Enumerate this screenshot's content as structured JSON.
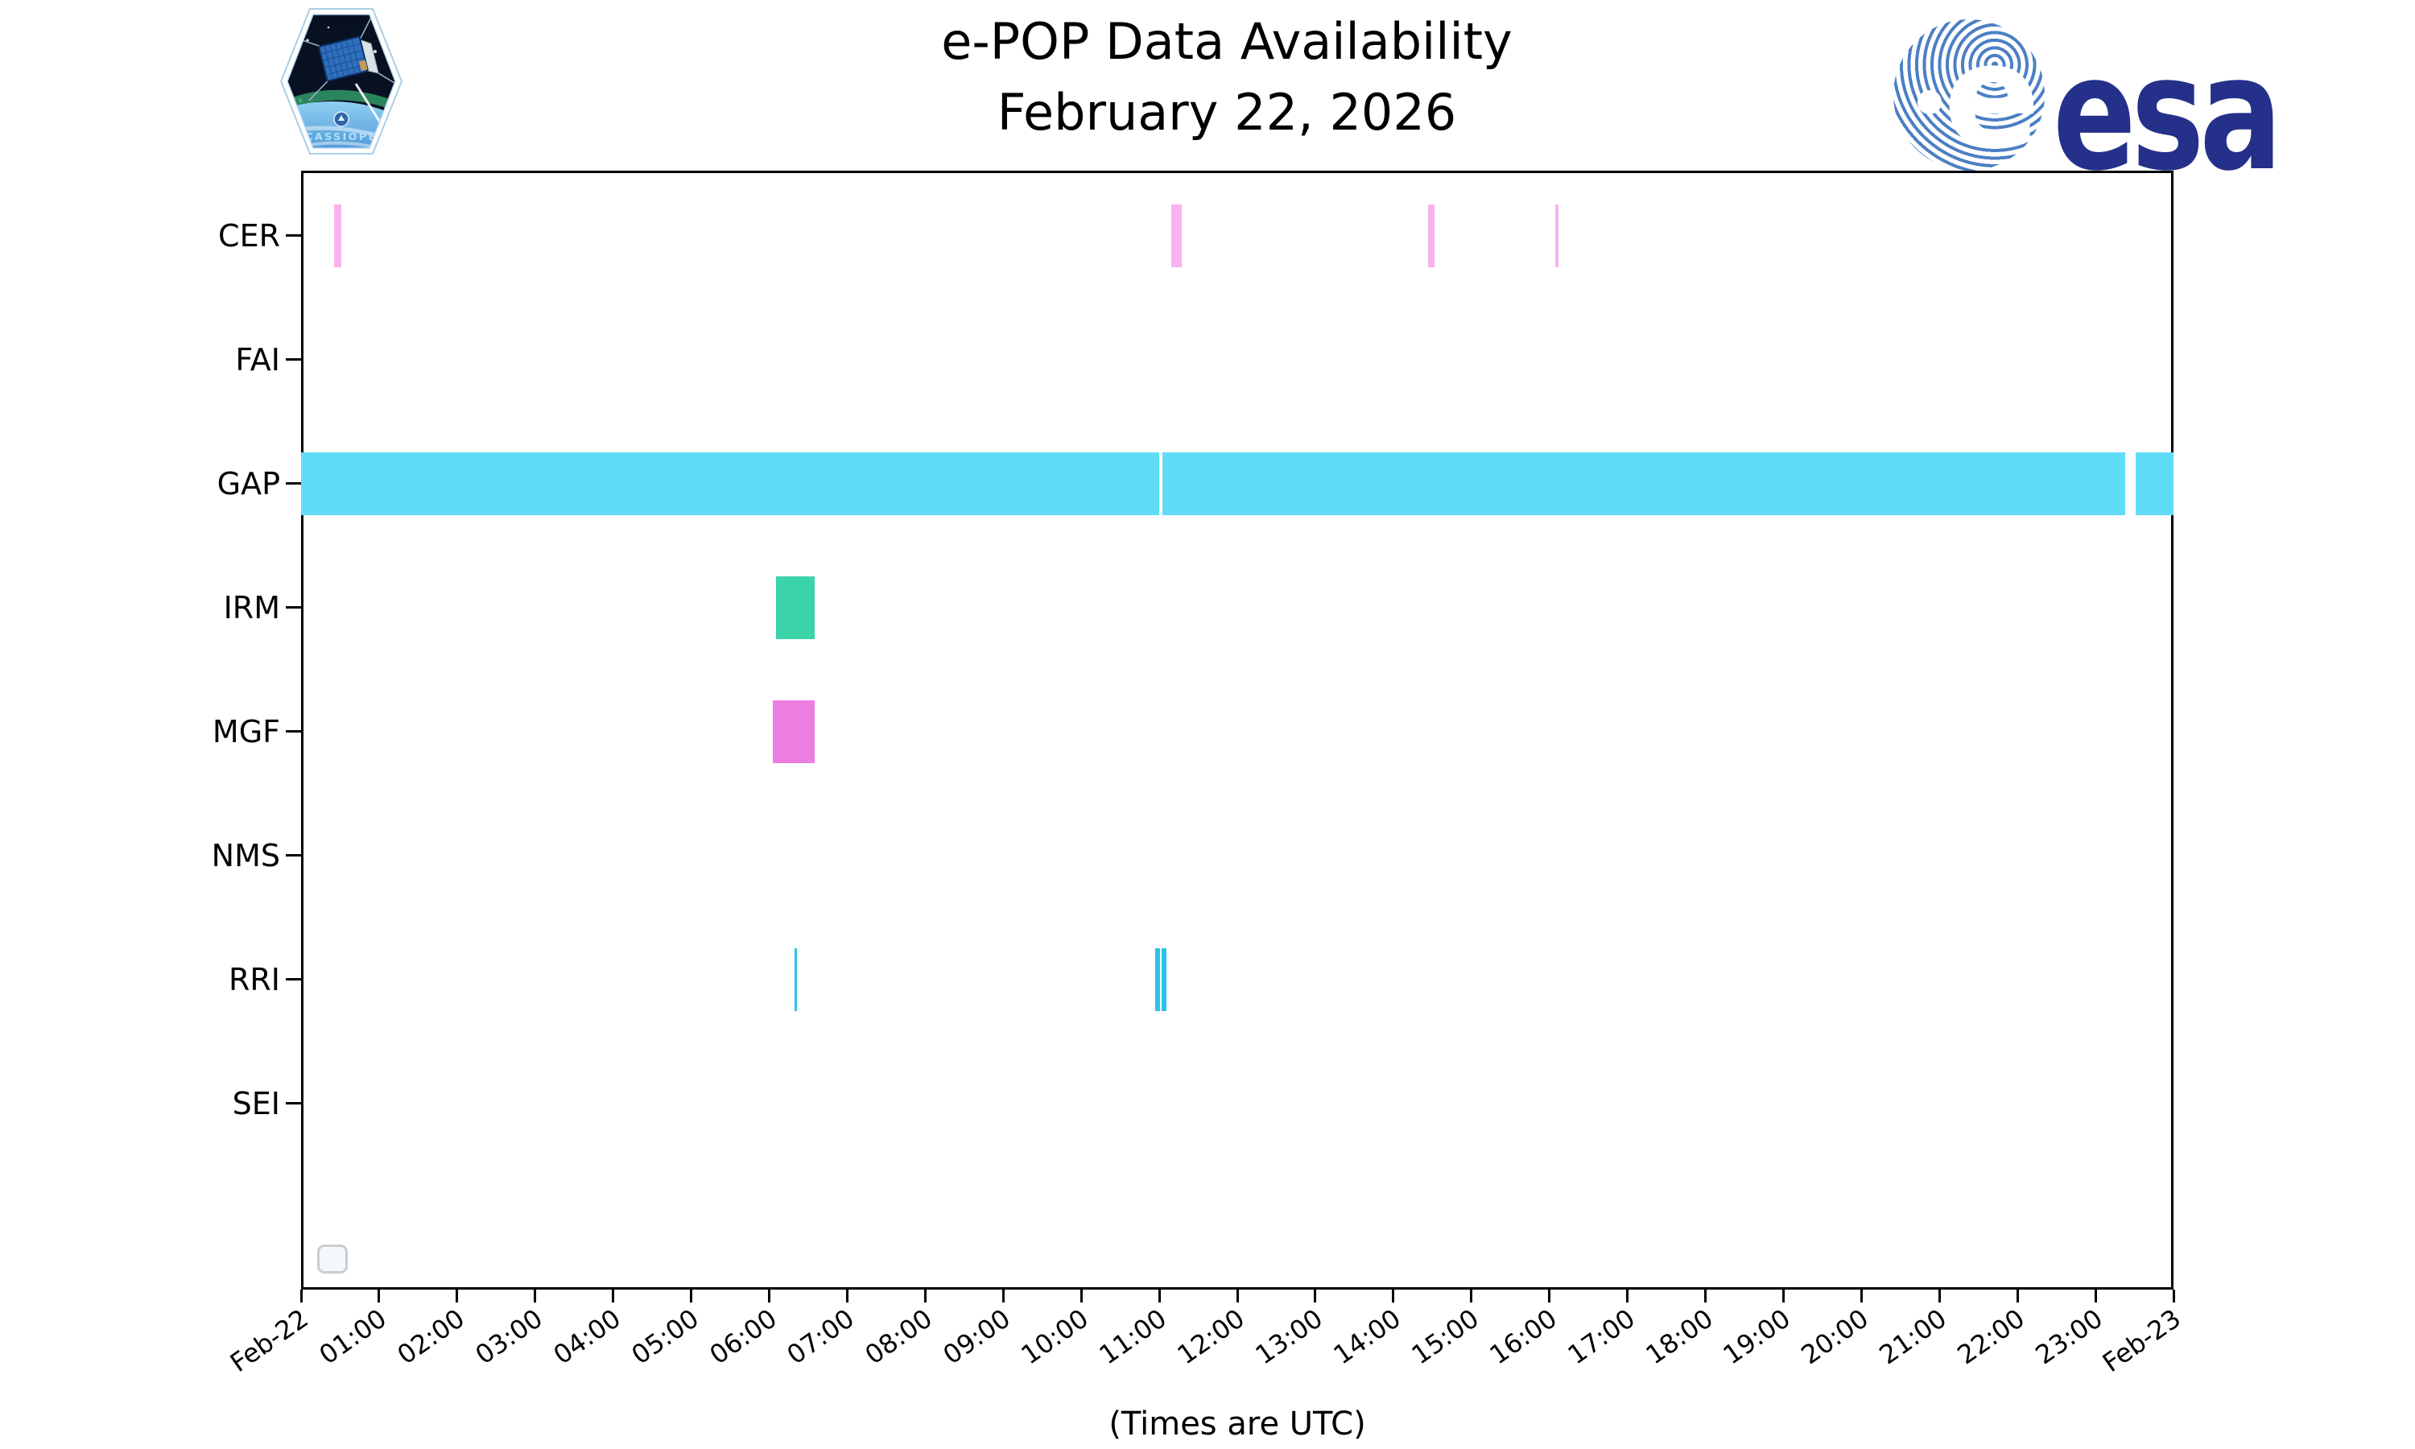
{
  "header": {
    "title_line1": "e-POP Data Availability",
    "title_line2": "February 22, 2026",
    "cassiope_badge_label": "CASSIOPE",
    "esa_globe_e": "e",
    "esa_wordmark": "esa"
  },
  "chart_data": {
    "type": "bar",
    "subtype": "horizontal-availability-timeline",
    "title": "e-POP Data Availability",
    "subtitle": "February 22, 2026",
    "xlabel": "(Times are UTC)",
    "x_range_hours": [
      0,
      24
    ],
    "grid": false,
    "legend_position": "lower-left-empty-frame",
    "rows": [
      "CER",
      "FAI",
      "GAP",
      "IRM",
      "MGF",
      "NMS",
      "RRI",
      "SEI"
    ],
    "colors": {
      "CER": "#fbb1f0",
      "GAP": "#60dcf7",
      "IRM": "#3bd3a8",
      "MGF": "#ee7de2",
      "RRI": "#2bc2e6"
    },
    "x_ticks": [
      {
        "hour": 0,
        "label": "Feb-22"
      },
      {
        "hour": 1,
        "label": "01:00"
      },
      {
        "hour": 2,
        "label": "02:00"
      },
      {
        "hour": 3,
        "label": "03:00"
      },
      {
        "hour": 4,
        "label": "04:00"
      },
      {
        "hour": 5,
        "label": "05:00"
      },
      {
        "hour": 6,
        "label": "06:00"
      },
      {
        "hour": 7,
        "label": "07:00"
      },
      {
        "hour": 8,
        "label": "08:00"
      },
      {
        "hour": 9,
        "label": "09:00"
      },
      {
        "hour": 10,
        "label": "10:00"
      },
      {
        "hour": 11,
        "label": "11:00"
      },
      {
        "hour": 12,
        "label": "12:00"
      },
      {
        "hour": 13,
        "label": "13:00"
      },
      {
        "hour": 14,
        "label": "14:00"
      },
      {
        "hour": 15,
        "label": "15:00"
      },
      {
        "hour": 16,
        "label": "16:00"
      },
      {
        "hour": 17,
        "label": "17:00"
      },
      {
        "hour": 18,
        "label": "18:00"
      },
      {
        "hour": 19,
        "label": "19:00"
      },
      {
        "hour": 20,
        "label": "20:00"
      },
      {
        "hour": 21,
        "label": "21:00"
      },
      {
        "hour": 22,
        "label": "22:00"
      },
      {
        "hour": 23,
        "label": "23:00"
      },
      {
        "hour": 24,
        "label": "Feb-23"
      }
    ],
    "intervals": [
      {
        "row": "CER",
        "start": "00:25",
        "end": "00:31",
        "start_h": 0.42,
        "end_h": 0.52
      },
      {
        "row": "CER",
        "start": "11:09",
        "end": "11:17",
        "start_h": 11.15,
        "end_h": 11.29
      },
      {
        "row": "CER",
        "start": "14:27",
        "end": "14:32",
        "start_h": 14.45,
        "end_h": 14.53
      },
      {
        "row": "CER",
        "start": "16:05",
        "end": "16:07",
        "start_h": 16.08,
        "end_h": 16.12
      },
      {
        "row": "GAP",
        "start": "00:00",
        "end": "11:00",
        "start_h": 0.0,
        "end_h": 11.0
      },
      {
        "row": "GAP",
        "start": "11:02",
        "end": "23:23",
        "start_h": 11.04,
        "end_h": 23.38
      },
      {
        "row": "GAP",
        "start": "23:31",
        "end": "24:00",
        "start_h": 23.52,
        "end_h": 24.0
      },
      {
        "row": "IRM",
        "start": "06:05",
        "end": "06:35",
        "start_h": 6.09,
        "end_h": 6.58
      },
      {
        "row": "MGF",
        "start": "06:03",
        "end": "06:35",
        "start_h": 6.05,
        "end_h": 6.58
      },
      {
        "row": "RRI",
        "start": "06:19",
        "end": "06:22",
        "start_h": 6.32,
        "end_h": 6.36
      },
      {
        "row": "RRI",
        "start": "10:57",
        "end": "11:01",
        "start_h": 10.95,
        "end_h": 11.01
      },
      {
        "row": "RRI",
        "start": "11:02",
        "end": "11:05",
        "start_h": 11.03,
        "end_h": 11.09
      }
    ],
    "rows_with_no_data": [
      "FAI",
      "NMS",
      "SEI"
    ]
  }
}
